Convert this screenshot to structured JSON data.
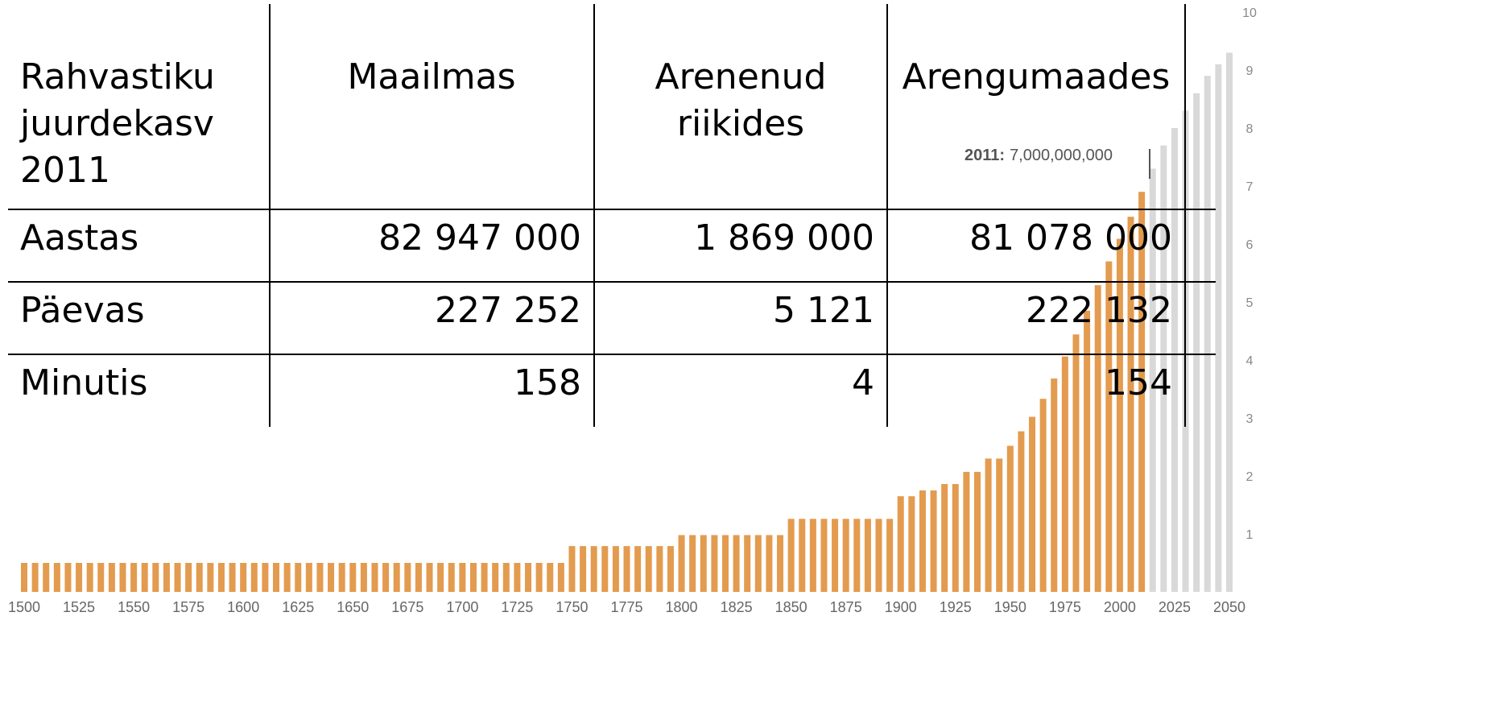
{
  "table": {
    "header": [
      [
        "Rahvastiku",
        "juurdekasv",
        "2011"
      ],
      [
        "Maailmas"
      ],
      [
        "Arenenud",
        "riikides"
      ],
      [
        "Arengumaades"
      ]
    ],
    "rows": [
      [
        "Aastas",
        "82 947 000",
        "1 869 000",
        "81 078 000"
      ],
      [
        "Päevas",
        "227 252",
        "5 121",
        "222 132"
      ],
      [
        "Minutis",
        "158",
        "4",
        "154"
      ]
    ]
  },
  "chart_data": {
    "type": "bar",
    "annotation": {
      "label": "2011:",
      "text": "7,000,000,000"
    },
    "xlim": [
      1500,
      2050
    ],
    "xticks": [
      1500,
      1525,
      1550,
      1575,
      1600,
      1625,
      1650,
      1675,
      1700,
      1725,
      1750,
      1775,
      1800,
      1825,
      1850,
      1875,
      1900,
      1925,
      1950,
      1975,
      2000,
      2025,
      2050
    ],
    "ylim": [
      0,
      10
    ],
    "yticks": [
      1,
      2,
      3,
      4,
      5,
      6,
      7,
      8,
      9,
      10
    ],
    "series": [
      {
        "color": "#e39b4f",
        "x": [
          1500,
          1505,
          1510,
          1515,
          1520,
          1525,
          1530,
          1535,
          1540,
          1545,
          1550,
          1555,
          1560,
          1565,
          1570,
          1575,
          1580,
          1585,
          1590,
          1595,
          1600,
          1605,
          1610,
          1615,
          1620,
          1625,
          1630,
          1635,
          1640,
          1645,
          1650,
          1655,
          1660,
          1665,
          1670,
          1675,
          1680,
          1685,
          1690,
          1695,
          1700,
          1705,
          1710,
          1715,
          1720,
          1725,
          1730,
          1735,
          1740,
          1745,
          1750,
          1755,
          1760,
          1765,
          1770,
          1775,
          1780,
          1785,
          1790,
          1795,
          1800,
          1805,
          1810,
          1815,
          1820,
          1825,
          1830,
          1835,
          1840,
          1845,
          1850,
          1855,
          1860,
          1865,
          1870,
          1875,
          1880,
          1885,
          1890,
          1895,
          1900,
          1905,
          1910,
          1915,
          1920,
          1925,
          1930,
          1935,
          1940,
          1945,
          1950,
          1955,
          1960,
          1965,
          1970,
          1975,
          1980,
          1985,
          1990,
          1995,
          2000,
          2005,
          2010
        ],
        "values": [
          0.5,
          0.5,
          0.5,
          0.5,
          0.5,
          0.5,
          0.5,
          0.5,
          0.5,
          0.5,
          0.5,
          0.5,
          0.5,
          0.5,
          0.5,
          0.5,
          0.5,
          0.5,
          0.5,
          0.5,
          0.5,
          0.5,
          0.5,
          0.5,
          0.5,
          0.5,
          0.5,
          0.5,
          0.5,
          0.5,
          0.5,
          0.5,
          0.5,
          0.5,
          0.5,
          0.5,
          0.5,
          0.5,
          0.5,
          0.5,
          0.5,
          0.5,
          0.5,
          0.5,
          0.5,
          0.5,
          0.5,
          0.5,
          0.5,
          0.5,
          0.79,
          0.79,
          0.79,
          0.79,
          0.79,
          0.79,
          0.79,
          0.79,
          0.79,
          0.79,
          0.98,
          0.98,
          0.98,
          0.98,
          0.98,
          0.98,
          0.98,
          0.98,
          0.98,
          0.98,
          1.26,
          1.26,
          1.26,
          1.26,
          1.26,
          1.26,
          1.26,
          1.26,
          1.26,
          1.26,
          1.65,
          1.65,
          1.75,
          1.75,
          1.86,
          1.86,
          2.07,
          2.07,
          2.3,
          2.3,
          2.52,
          2.77,
          3.02,
          3.33,
          3.68,
          4.06,
          4.44,
          4.85,
          5.29,
          5.7,
          6.09,
          6.47,
          6.9
        ]
      },
      {
        "color": "#d9d9d9",
        "x": [
          2015,
          2020,
          2025,
          2030,
          2035,
          2040,
          2045,
          2050
        ],
        "values": [
          7.3,
          7.7,
          8.0,
          8.3,
          8.6,
          8.9,
          9.1,
          9.3
        ]
      }
    ]
  }
}
